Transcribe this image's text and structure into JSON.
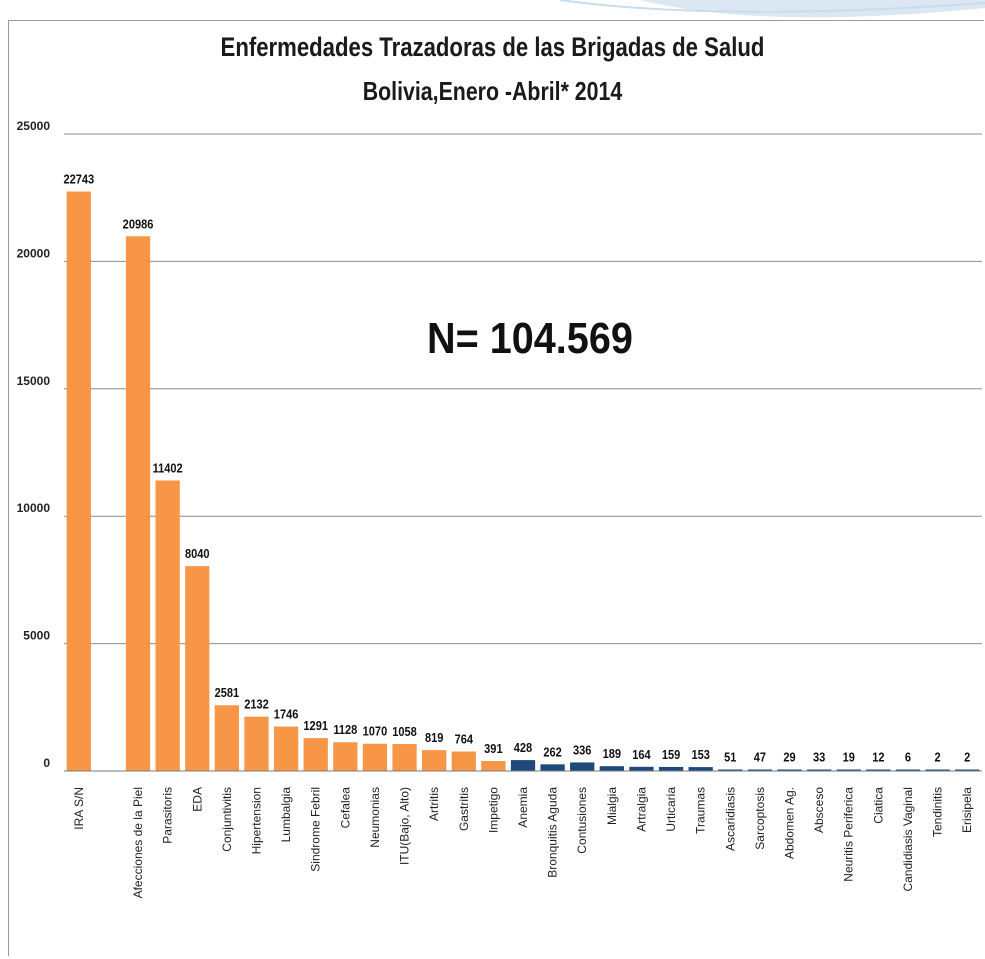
{
  "chart_data": {
    "type": "bar",
    "title": "Enfermedades Trazadoras de las Brigadas de Salud",
    "subtitle": "Bolivia,Enero -Abril* 2014",
    "annotation": "N= 104.569",
    "xlabel": "",
    "ylabel": "",
    "ylim": [
      0,
      25000
    ],
    "yticks": [
      "0",
      "5000",
      "10000",
      "15000",
      "20000",
      "25000"
    ],
    "grid": true,
    "legend": "none",
    "colors": {
      "primary": "#f79646",
      "secondary": "#1f497d"
    },
    "categories": [
      "IRA S/N",
      "",
      "Afecciones de la Piel",
      "Parasitoris",
      "EDA",
      "Conjuntivitis",
      "Hipertension",
      "Lumbalgia",
      "Sindrome Febril",
      "Cefalea",
      "Neumonias",
      "ITU(Bajo, Alto)",
      "Artritis",
      "Gastritis",
      "Impetigo",
      "Anemia",
      "Bronquitis Aguda",
      "Contusiones",
      "Mialgia",
      "Artralgia",
      "Urticaria",
      "Traumas",
      "Ascaridiasis",
      "Sarcoptosis",
      "Abdomen Ag.",
      "Absceso",
      "Neuritis Periferica",
      "Ciatica",
      "Candidiasis Vaginal",
      "Tendinitis",
      "Erisipela"
    ],
    "values": [
      22743,
      null,
      20986,
      11402,
      8040,
      2581,
      2132,
      1746,
      1291,
      1128,
      1070,
      1058,
      819,
      764,
      391,
      428,
      262,
      336,
      189,
      164,
      159,
      153,
      51,
      47,
      29,
      33,
      19,
      12,
      6,
      2,
      2
    ],
    "value_labels": [
      "22743",
      "",
      "20986",
      "11402",
      "8040",
      "2581",
      "2132",
      "1746",
      "1291",
      "1128",
      "1070",
      "1058",
      "819",
      "764",
      "391",
      "428",
      "262",
      "336",
      "189",
      "164",
      "159",
      "153",
      "51",
      "47",
      "29",
      "33",
      "19",
      "12",
      "6",
      "2",
      "2"
    ],
    "bar_colors": [
      "primary",
      "",
      "primary",
      "primary",
      "primary",
      "primary",
      "primary",
      "primary",
      "primary",
      "primary",
      "primary",
      "primary",
      "primary",
      "primary",
      "primary",
      "secondary",
      "secondary",
      "secondary",
      "secondary",
      "secondary",
      "secondary",
      "secondary",
      "secondary",
      "secondary",
      "secondary",
      "secondary",
      "secondary",
      "secondary",
      "secondary",
      "secondary",
      "secondary"
    ]
  }
}
